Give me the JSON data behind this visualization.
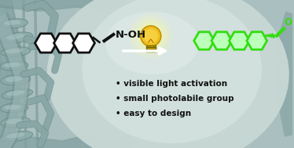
{
  "bg_color": "#aabfbf",
  "bullet_points": [
    "visible light activation",
    "small photolabile group",
    "easy to design"
  ],
  "noh_label": "N-OH",
  "molecule_left_color": "#111111",
  "molecule_right_color": "#33dd11",
  "molecule_right_fill": "#bbffbb",
  "text_color": "#111111",
  "bullet_fontsize": 7.5,
  "label_fontsize": 9.5,
  "bulb_yellow": "#f0c020",
  "bulb_glow_color": "#ffff99",
  "arrow_color": "#ffffff",
  "sphere_color": "#c8d8d5",
  "sphere_bright": "#ddeae6",
  "tube_color": "#8eabab",
  "tube_edge": "#6e8e8e",
  "tube_inner": "#b0c8c8"
}
